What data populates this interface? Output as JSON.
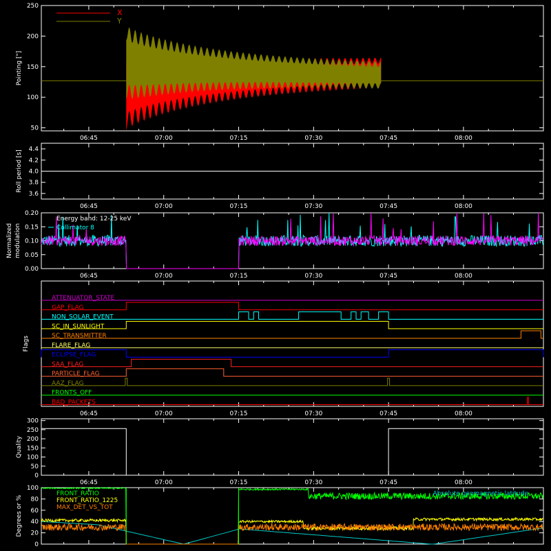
{
  "figure": {
    "background": "#000000",
    "axis_color": "#ffffff",
    "time_ticks": [
      "06:45",
      "07:00",
      "07:15",
      "07:30",
      "07:45",
      "08:00"
    ],
    "time_tick_minutes": [
      405,
      420,
      435,
      450,
      465,
      480
    ],
    "time_range_minutes": [
      395.5,
      496
    ]
  },
  "chart_data": [
    {
      "id": "pointing",
      "type": "area",
      "ylabel": "Pointing [\"]",
      "ylim": [
        45,
        250
      ],
      "yticks": [
        50,
        100,
        150,
        200,
        250
      ],
      "reference_line": 127,
      "series": [
        {
          "name": "X",
          "color": "#ff0000",
          "t_start": 412.5,
          "t_end": 463.5,
          "center_start": 115,
          "center_end": 140,
          "halfwidth_start": 55,
          "halfwidth_end": 18,
          "osc_period_min": 1.2
        },
        {
          "name": "Y",
          "color": "#808000",
          "t_start": 412.5,
          "t_end": 463.5,
          "center_start": 158,
          "center_end": 136,
          "halfwidth_start": 48,
          "halfwidth_end": 16,
          "osc_period_min": 1.2
        }
      ]
    },
    {
      "id": "roll",
      "type": "line",
      "ylabel": "Roll period [s]",
      "ylim": [
        3.5,
        4.5
      ],
      "yticks": [
        "3.6",
        "3.8",
        "4.0",
        "4.2",
        "4.4"
      ],
      "ytick_values": [
        3.6,
        3.8,
        4.0,
        4.2,
        4.4
      ],
      "series": [
        {
          "color": "#ffffff",
          "value": 4.0
        }
      ]
    },
    {
      "id": "modulation",
      "type": "line",
      "ylabel_lines": [
        "Normalized",
        "modulation"
      ],
      "ylim": [
        0,
        0.2
      ],
      "yticks": [
        "0.00",
        "0.05",
        "0.10",
        "0.15",
        "0.20"
      ],
      "ytick_values": [
        0,
        0.05,
        0.1,
        0.15,
        0.2
      ],
      "annotation": "Energy band: 12-25 keV",
      "series": [
        {
          "name": "Collimator 8",
          "color": "#00ffff",
          "mean": 0.1,
          "noise": 0.02
        },
        {
          "name": "",
          "color": "#ff00ff",
          "mean": 0.1,
          "noise": 0.018
        }
      ],
      "active_intervals": [
        [
          395.5,
          412.5
        ],
        [
          435,
          496
        ]
      ]
    },
    {
      "id": "flags",
      "type": "line",
      "ylabel": "Flags",
      "series": [
        {
          "name": "ATTENUATOR_STATE",
          "color": "#cc00cc",
          "low": [],
          "high_segments": []
        },
        {
          "name": "GAP_FLAG",
          "color": "#ff0000",
          "high_segments": [
            [
              412.5,
              435
            ]
          ]
        },
        {
          "name": "NON_SOLAR_EVENT",
          "color": "#00ffff",
          "high_segments": [
            [
              435,
              437
            ],
            [
              438,
              439
            ],
            [
              447,
              455.5
            ],
            [
              457.5,
              458.5
            ],
            [
              459.5,
              461
            ],
            [
              463,
              465
            ]
          ]
        },
        {
          "name": "SC_IN_SUNLIGHT",
          "color": "#ffff00",
          "high_segments": [
            [
              412.5,
              465
            ]
          ],
          "inverted": true
        },
        {
          "name": "SC_TRANSMITTER",
          "color": "#ff8000",
          "high_segments": [
            [
              491.5,
              495.5
            ]
          ]
        },
        {
          "name": "FLARE_FLAG",
          "color": "#ffff66",
          "high_segments": []
        },
        {
          "name": "ECLIPSE_FLAG",
          "color": "#0000ff",
          "high_segments": [
            [
              395.5,
              412.5
            ],
            [
              465,
              496
            ]
          ]
        },
        {
          "name": "SAA_FLAG",
          "color": "#ff2020",
          "high_segments": [
            [
              413.5,
              433.5
            ]
          ]
        },
        {
          "name": "PARTICLE_FLAG",
          "color": "#ff6030",
          "high_segments": [
            [
              412.5,
              432
            ]
          ]
        },
        {
          "name": "AAZ_FLAG",
          "color": "#808000",
          "high_segments": [
            [
              412.3,
              412.7
            ],
            [
              464.8,
              465.2
            ]
          ]
        },
        {
          "name": "FRONTS_OFF",
          "color": "#00ff00",
          "high_segments": []
        },
        {
          "name": "BAD_PACKETS",
          "color": "#ff0000",
          "high_segments": [
            [
              492.8,
              493
            ]
          ]
        }
      ]
    },
    {
      "id": "quality",
      "type": "line",
      "ylabel": "Quality",
      "ylim": [
        0,
        310
      ],
      "yticks": [
        "0",
        "50",
        "100",
        "150",
        "200",
        "250",
        "300"
      ],
      "ytick_values": [
        0,
        50,
        100,
        150,
        200,
        250,
        300
      ],
      "series": [
        {
          "color": "#ffffff",
          "segments": [
            [
              395.5,
              412.5,
              256
            ],
            [
              412.5,
              465,
              0
            ],
            [
              465,
              496,
              256
            ]
          ]
        }
      ]
    },
    {
      "id": "degrees",
      "type": "line",
      "ylabel": "Degrees or %",
      "ylim": [
        0,
        100
      ],
      "yticks": [
        "0",
        "20",
        "40",
        "60",
        "80",
        "100"
      ],
      "ytick_values": [
        0,
        20,
        40,
        60,
        80,
        100
      ],
      "series": [
        {
          "name": "FRONT_RATIO",
          "color": "#00ff00"
        },
        {
          "name": "FRONT_RATIO_1225",
          "color": "#ffff00"
        },
        {
          "name": "MAX_DET_VS_TOT",
          "color": "#ff8000"
        },
        {
          "name": "Absolute geomagnetic latitude",
          "color": "#00cccc"
        }
      ]
    }
  ]
}
